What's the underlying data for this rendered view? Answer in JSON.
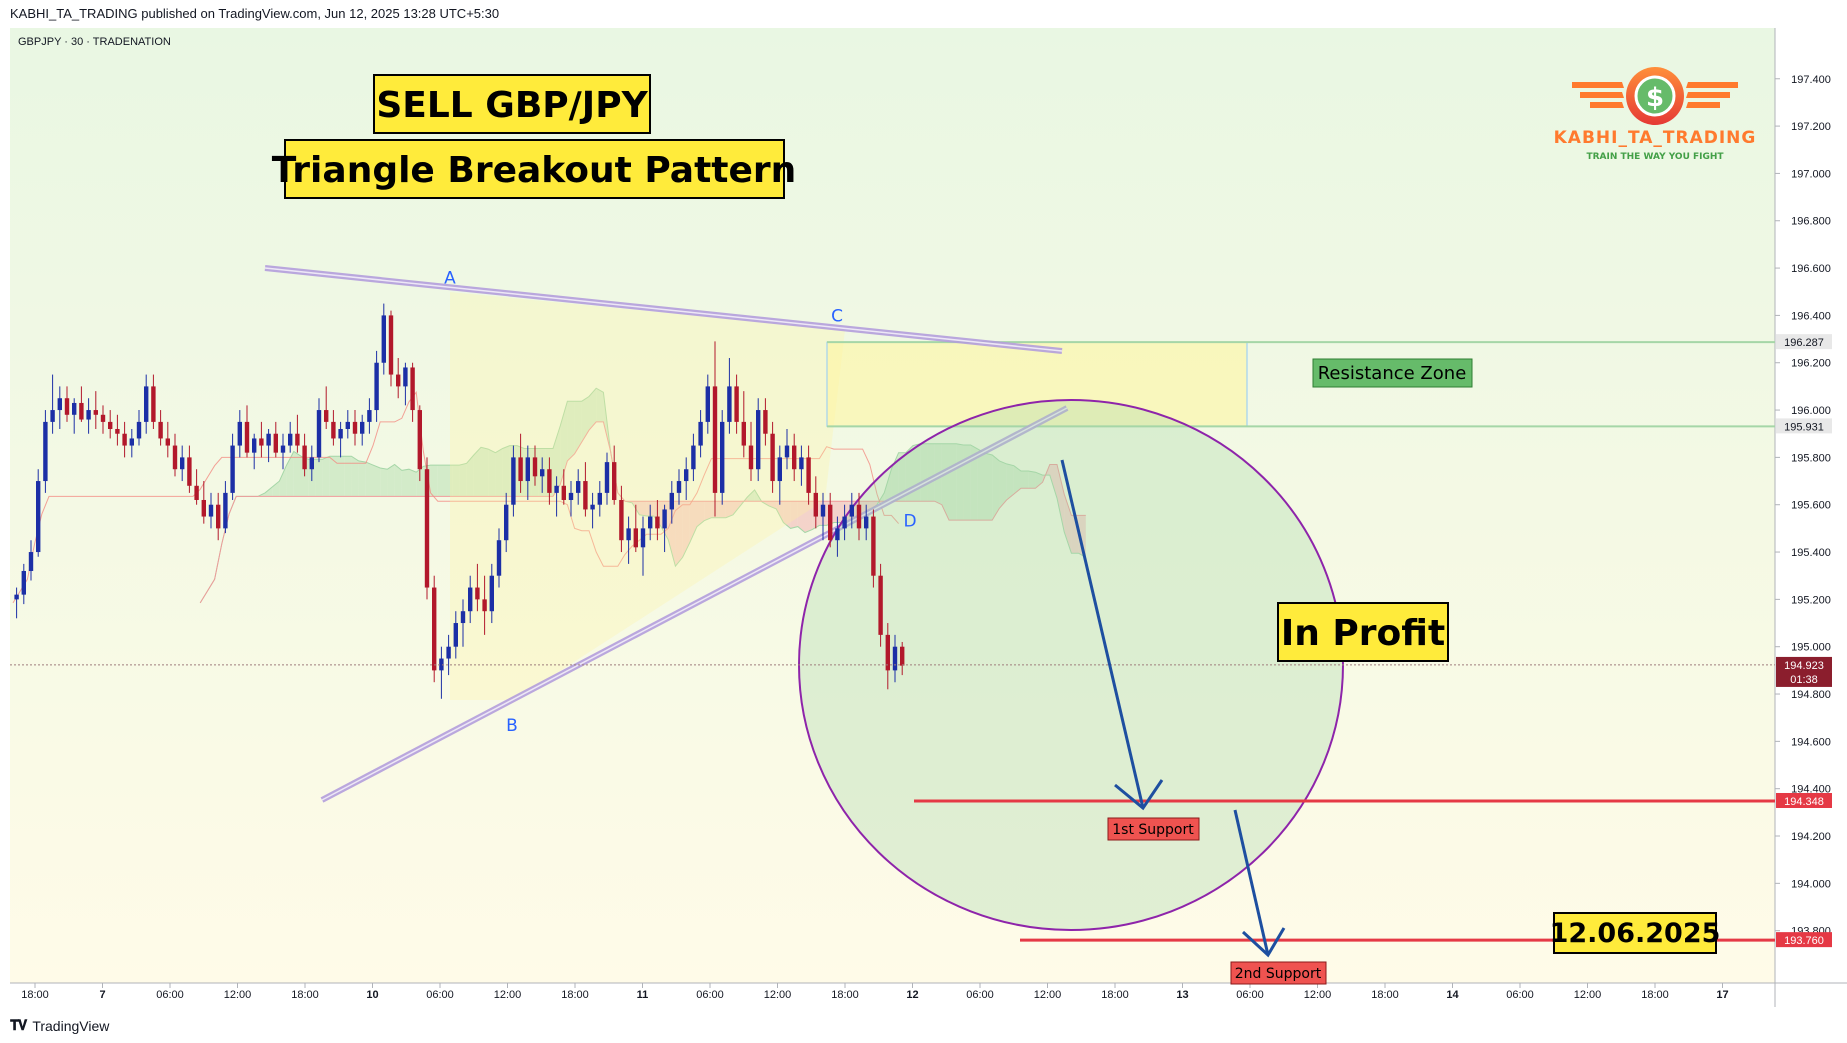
{
  "header": {
    "published": "KABHI_TA_TRADING published on TradingView.com, Jun 12, 2025 13:28 UTC+5:30"
  },
  "footer": {
    "brand": "TradingView",
    "logo_icon": "tradingview-logo-icon"
  },
  "colors": {
    "up": "#1c2fa6",
    "down": "#b2182b",
    "resistance": "#e53945",
    "trendline": "#b39ddb",
    "cloud_green": "#c8e6c0",
    "cloud_red": "#f3c6c2",
    "callout_bg": "#ffeb3b",
    "circle": "#8e24aa",
    "arrow": "#1e4fa0"
  },
  "chart_data": {
    "type": "candlestick",
    "symbol_label": "GBPJPY · 30 · TRADENATION",
    "price_axis": {
      "ylim": [
        193.6,
        197.53
      ],
      "ticks": [
        "197.400",
        "197.200",
        "197.000",
        "196.800",
        "196.600",
        "196.400",
        "196.200",
        "196.000",
        "195.800",
        "195.600",
        "195.400",
        "195.200",
        "195.000",
        "194.800",
        "194.600",
        "194.400",
        "194.200",
        "194.000",
        "193.800"
      ]
    },
    "time_axis": {
      "ticks": [
        "18:00",
        "7",
        "06:00",
        "12:00",
        "18:00",
        "10",
        "06:00",
        "12:00",
        "18:00",
        "11",
        "06:00",
        "12:00",
        "18:00",
        "12",
        "06:00",
        "12:00",
        "18:00",
        "13",
        "06:00",
        "12:00",
        "18:00",
        "14",
        "06:00",
        "12:00",
        "18:00",
        "17"
      ]
    },
    "price_labels": [
      {
        "value": "196.287",
        "style": "level"
      },
      {
        "value": "195.931",
        "style": "level"
      },
      {
        "value": "194.923",
        "style": "current",
        "countdown": "01:38"
      },
      {
        "value": "194.348",
        "style": "support"
      },
      {
        "value": "193.760",
        "style": "support"
      }
    ],
    "current_price": 194.923,
    "levels": [
      {
        "label": "Resistance Zone",
        "from": 195.931,
        "to": 196.287
      },
      {
        "label": "1st Support",
        "value": 194.348
      },
      {
        "label": "2nd Support",
        "value": 193.76
      }
    ],
    "pattern_points": [
      {
        "label": "A",
        "price": 196.45
      },
      {
        "label": "B",
        "price": 194.78
      },
      {
        "label": "C",
        "price": 196.29
      },
      {
        "label": "D",
        "price": 195.6
      }
    ],
    "annotations": [
      "SELL GBP/JPY",
      "Triangle Breakout Pattern",
      "In Profit",
      "12.06.2025"
    ],
    "logo": {
      "name": "KABHI_TA_TRADING",
      "tagline": "TRAIN THE WAY YOU FIGHT",
      "icon": "dollar-coin-wings-icon",
      "symbol": "$"
    },
    "candles_ohlc": [
      [
        195.2,
        195.25,
        195.12,
        195.22
      ],
      [
        195.22,
        195.35,
        195.18,
        195.32
      ],
      [
        195.32,
        195.45,
        195.28,
        195.4
      ],
      [
        195.4,
        195.75,
        195.38,
        195.7
      ],
      [
        195.7,
        196.0,
        195.65,
        195.95
      ],
      [
        195.95,
        196.15,
        195.9,
        196.0
      ],
      [
        196.0,
        196.1,
        195.92,
        196.05
      ],
      [
        196.05,
        196.1,
        195.95,
        195.98
      ],
      [
        195.98,
        196.05,
        195.9,
        196.03
      ],
      [
        196.03,
        196.1,
        195.95,
        195.96
      ],
      [
        195.96,
        196.05,
        195.9,
        196.0
      ],
      [
        196.0,
        196.08,
        195.92,
        195.98
      ],
      [
        195.98,
        196.02,
        195.9,
        195.95
      ],
      [
        195.95,
        196.0,
        195.88,
        195.92
      ],
      [
        195.92,
        195.98,
        195.85,
        195.9
      ],
      [
        195.9,
        195.95,
        195.8,
        195.85
      ],
      [
        195.85,
        195.92,
        195.8,
        195.88
      ],
      [
        195.88,
        196.0,
        195.85,
        195.95
      ],
      [
        195.95,
        196.15,
        195.9,
        196.1
      ],
      [
        196.1,
        196.15,
        195.92,
        195.95
      ],
      [
        195.95,
        196.0,
        195.85,
        195.88
      ],
      [
        195.88,
        195.95,
        195.8,
        195.85
      ],
      [
        195.85,
        195.9,
        195.72,
        195.75
      ],
      [
        195.75,
        195.85,
        195.7,
        195.8
      ],
      [
        195.8,
        195.85,
        195.65,
        195.68
      ],
      [
        195.68,
        195.75,
        195.6,
        195.62
      ],
      [
        195.62,
        195.7,
        195.52,
        195.55
      ],
      [
        195.55,
        195.65,
        195.5,
        195.6
      ],
      [
        195.6,
        195.65,
        195.45,
        195.5
      ],
      [
        195.5,
        195.7,
        195.48,
        195.65
      ],
      [
        195.65,
        195.9,
        195.62,
        195.85
      ],
      [
        195.85,
        196.0,
        195.8,
        195.95
      ],
      [
        195.95,
        196.02,
        195.8,
        195.82
      ],
      [
        195.82,
        195.9,
        195.75,
        195.88
      ],
      [
        195.88,
        195.95,
        195.8,
        195.85
      ],
      [
        195.85,
        195.92,
        195.78,
        195.9
      ],
      [
        195.9,
        195.95,
        195.8,
        195.82
      ],
      [
        195.82,
        195.9,
        195.75,
        195.85
      ],
      [
        195.85,
        195.95,
        195.82,
        195.9
      ],
      [
        195.9,
        195.98,
        195.82,
        195.85
      ],
      [
        195.85,
        195.9,
        195.72,
        195.75
      ],
      [
        195.75,
        195.85,
        195.7,
        195.8
      ],
      [
        195.8,
        196.05,
        195.78,
        196.0
      ],
      [
        196.0,
        196.1,
        195.92,
        195.95
      ],
      [
        195.95,
        196.0,
        195.85,
        195.88
      ],
      [
        195.88,
        195.95,
        195.8,
        195.92
      ],
      [
        195.92,
        196.0,
        195.88,
        195.95
      ],
      [
        195.95,
        196.0,
        195.85,
        195.9
      ],
      [
        195.9,
        195.98,
        195.85,
        195.95
      ],
      [
        195.95,
        196.05,
        195.9,
        196.0
      ],
      [
        196.0,
        196.25,
        195.95,
        196.2
      ],
      [
        196.2,
        196.45,
        196.15,
        196.4
      ],
      [
        196.4,
        196.42,
        196.1,
        196.15
      ],
      [
        196.15,
        196.22,
        196.05,
        196.1
      ],
      [
        196.1,
        196.2,
        196.02,
        196.18
      ],
      [
        196.18,
        196.2,
        195.95,
        196.0
      ],
      [
        196.0,
        196.02,
        195.7,
        195.75
      ],
      [
        195.75,
        195.8,
        195.2,
        195.25
      ],
      [
        195.25,
        195.3,
        194.85,
        194.9
      ],
      [
        194.9,
        195.0,
        194.78,
        194.95
      ],
      [
        194.95,
        195.05,
        194.88,
        195.0
      ],
      [
        195.0,
        195.15,
        194.95,
        195.1
      ],
      [
        195.1,
        195.2,
        195.0,
        195.15
      ],
      [
        195.15,
        195.3,
        195.1,
        195.25
      ],
      [
        195.25,
        195.35,
        195.15,
        195.2
      ],
      [
        195.2,
        195.3,
        195.05,
        195.15
      ],
      [
        195.15,
        195.35,
        195.1,
        195.3
      ],
      [
        195.3,
        195.5,
        195.25,
        195.45
      ],
      [
        195.45,
        195.65,
        195.4,
        195.6
      ],
      [
        195.6,
        195.85,
        195.55,
        195.8
      ],
      [
        195.8,
        195.9,
        195.65,
        195.7
      ],
      [
        195.7,
        195.85,
        195.62,
        195.8
      ],
      [
        195.8,
        195.85,
        195.68,
        195.72
      ],
      [
        195.72,
        195.8,
        195.65,
        195.75
      ],
      [
        195.75,
        195.8,
        195.6,
        195.65
      ],
      [
        195.65,
        195.72,
        195.55,
        195.68
      ],
      [
        195.68,
        195.75,
        195.6,
        195.62
      ],
      [
        195.62,
        195.7,
        195.55,
        195.65
      ],
      [
        195.65,
        195.75,
        195.6,
        195.7
      ],
      [
        195.7,
        195.78,
        195.55,
        195.58
      ],
      [
        195.58,
        195.65,
        195.5,
        195.6
      ],
      [
        195.6,
        195.7,
        195.55,
        195.65
      ],
      [
        195.65,
        195.82,
        195.6,
        195.78
      ],
      [
        195.78,
        195.85,
        195.6,
        195.62
      ],
      [
        195.62,
        195.68,
        195.4,
        195.45
      ],
      [
        195.45,
        195.55,
        195.35,
        195.5
      ],
      [
        195.5,
        195.6,
        195.4,
        195.42
      ],
      [
        195.42,
        195.55,
        195.3,
        195.5
      ],
      [
        195.5,
        195.6,
        195.45,
        195.55
      ],
      [
        195.55,
        195.62,
        195.45,
        195.5
      ],
      [
        195.5,
        195.6,
        195.4,
        195.58
      ],
      [
        195.58,
        195.7,
        195.52,
        195.65
      ],
      [
        195.65,
        195.75,
        195.6,
        195.7
      ],
      [
        195.7,
        195.8,
        195.62,
        195.75
      ],
      [
        195.75,
        195.9,
        195.7,
        195.85
      ],
      [
        195.85,
        196.0,
        195.8,
        195.95
      ],
      [
        195.95,
        196.15,
        195.9,
        196.1
      ],
      [
        196.1,
        196.29,
        195.55,
        195.65
      ],
      [
        195.65,
        196.0,
        195.6,
        195.95
      ],
      [
        195.95,
        196.22,
        195.9,
        196.1
      ],
      [
        196.1,
        196.15,
        195.9,
        195.95
      ],
      [
        195.95,
        196.08,
        195.8,
        195.85
      ],
      [
        195.85,
        195.95,
        195.7,
        195.75
      ],
      [
        195.75,
        196.05,
        195.7,
        196.0
      ],
      [
        196.0,
        196.05,
        195.85,
        195.9
      ],
      [
        195.9,
        195.95,
        195.65,
        195.7
      ],
      [
        195.7,
        195.85,
        195.6,
        195.8
      ],
      [
        195.8,
        195.92,
        195.75,
        195.85
      ],
      [
        195.85,
        195.9,
        195.7,
        195.75
      ],
      [
        195.75,
        195.85,
        195.68,
        195.8
      ],
      [
        195.8,
        195.85,
        195.6,
        195.65
      ],
      [
        195.65,
        195.72,
        195.5,
        195.55
      ],
      [
        195.55,
        195.65,
        195.45,
        195.6
      ],
      [
        195.6,
        195.65,
        195.42,
        195.45
      ],
      [
        195.45,
        195.55,
        195.38,
        195.5
      ],
      [
        195.5,
        195.6,
        195.45,
        195.55
      ],
      [
        195.55,
        195.65,
        195.5,
        195.6
      ],
      [
        195.6,
        195.65,
        195.45,
        195.5
      ],
      [
        195.5,
        195.6,
        195.45,
        195.55
      ],
      [
        195.55,
        195.58,
        195.25,
        195.3
      ],
      [
        195.3,
        195.35,
        195.0,
        195.05
      ],
      [
        195.05,
        195.1,
        194.82,
        194.9
      ],
      [
        194.9,
        195.05,
        194.85,
        195.0
      ],
      [
        195.0,
        195.02,
        194.88,
        194.92
      ]
    ]
  }
}
